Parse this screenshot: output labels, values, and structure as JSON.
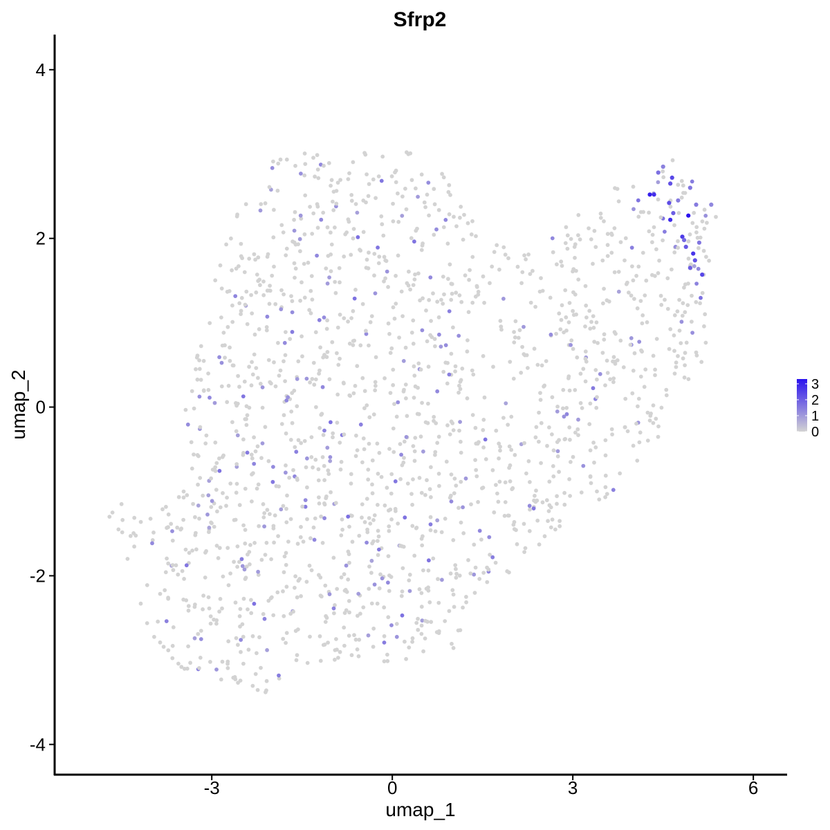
{
  "chart_data": {
    "type": "scatter",
    "title": "Sfrp2",
    "xlabel": "umap_1",
    "ylabel": "umap_2",
    "xlim": [
      -5.6,
      6.55
    ],
    "ylim": [
      -4.35,
      4.4
    ],
    "xticks": [
      -3,
      0,
      3,
      6
    ],
    "yticks": [
      -4,
      -2,
      0,
      2,
      4
    ],
    "grid": false,
    "legend": {
      "position": "right",
      "type": "colorbar",
      "ticks": [
        0,
        1,
        2,
        3
      ],
      "range": [
        0,
        3.3
      ],
      "low_color": "#d3d3d3",
      "high_color": "#2a12ee"
    },
    "point_color_low": "#d3d3d3",
    "point_color_high": "#2a12ee",
    "high_expression_points": [
      {
        "x": 4.28,
        "y": 2.52,
        "value": 3.1
      },
      {
        "x": 4.35,
        "y": 2.52,
        "value": 2.8
      },
      {
        "x": 4.65,
        "y": 2.72,
        "value": 2.4
      },
      {
        "x": 4.62,
        "y": 2.65,
        "value": 2.2
      },
      {
        "x": 4.6,
        "y": 2.42,
        "value": 2.3
      },
      {
        "x": 4.62,
        "y": 2.22,
        "value": 2.9
      },
      {
        "x": 4.67,
        "y": 2.3,
        "value": 2.0
      },
      {
        "x": 4.92,
        "y": 2.27,
        "value": 3.3
      },
      {
        "x": 4.82,
        "y": 2.02,
        "value": 2.6
      },
      {
        "x": 4.88,
        "y": 1.9,
        "value": 2.1
      },
      {
        "x": 5.0,
        "y": 1.82,
        "value": 2.7
      },
      {
        "x": 5.03,
        "y": 1.74,
        "value": 2.2
      },
      {
        "x": 4.95,
        "y": 1.65,
        "value": 2.0
      },
      {
        "x": 5.15,
        "y": 1.57,
        "value": 2.4
      },
      {
        "x": 4.95,
        "y": 2.6,
        "value": 1.6
      },
      {
        "x": 5.05,
        "y": 2.4,
        "value": 1.5
      },
      {
        "x": 4.5,
        "y": 2.85,
        "value": 1.4
      },
      {
        "x": 4.42,
        "y": 2.78,
        "value": 1.7
      },
      {
        "x": 5.3,
        "y": 2.4,
        "value": 1.3
      },
      {
        "x": 4.85,
        "y": 1.98,
        "value": 1.8
      },
      {
        "x": 5.1,
        "y": 1.95,
        "value": 1.6
      },
      {
        "x": 4.75,
        "y": 2.45,
        "value": 1.5
      }
    ]
  }
}
